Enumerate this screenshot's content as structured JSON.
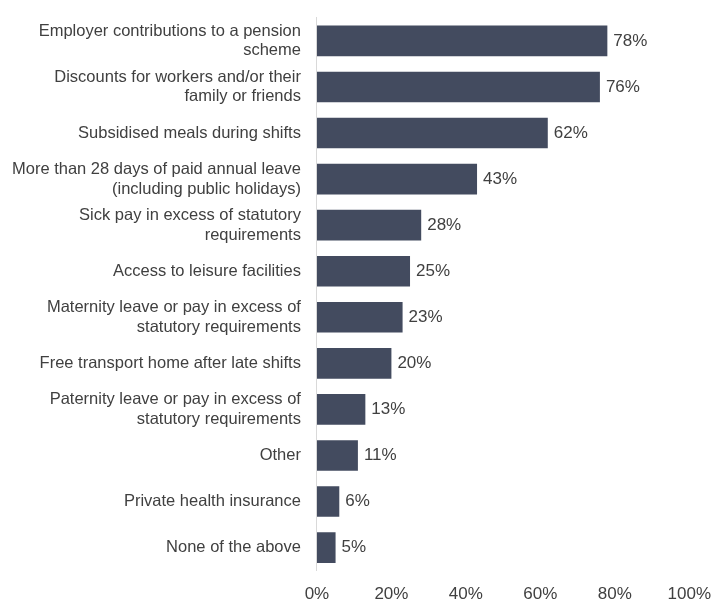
{
  "chart_data": {
    "type": "bar",
    "orientation": "horizontal",
    "categories": [
      "Employer contributions to a pension scheme",
      "Discounts for workers and/or their family or friends",
      "Subsidised meals during shifts",
      "More than 28 days of paid annual leave (including public holidays)",
      "Sick pay in excess of statutory requirements",
      "Access to leisure facilities",
      "Maternity leave or pay in excess of statutory requirements",
      "Free transport home after late shifts",
      "Paternity leave or pay in excess of statutory requirements",
      "Other",
      "Private health insurance",
      "None of the above"
    ],
    "values": [
      78,
      76,
      62,
      43,
      28,
      25,
      23,
      20,
      13,
      11,
      6,
      5
    ],
    "value_labels": [
      "78%",
      "76%",
      "62%",
      "43%",
      "28%",
      "25%",
      "23%",
      "20%",
      "13%",
      "11%",
      "6%",
      "5%"
    ],
    "data_labels": true,
    "color": "#434b5f",
    "xlim": [
      0,
      100
    ],
    "xticks": [
      {
        "value": 0,
        "label": "0%"
      },
      {
        "value": 20,
        "label": "20%"
      },
      {
        "value": 40,
        "label": "40%"
      },
      {
        "value": 60,
        "label": "60%"
      },
      {
        "value": 80,
        "label": "80%"
      },
      {
        "value": 100,
        "label": "100%"
      }
    ],
    "grid": false
  }
}
